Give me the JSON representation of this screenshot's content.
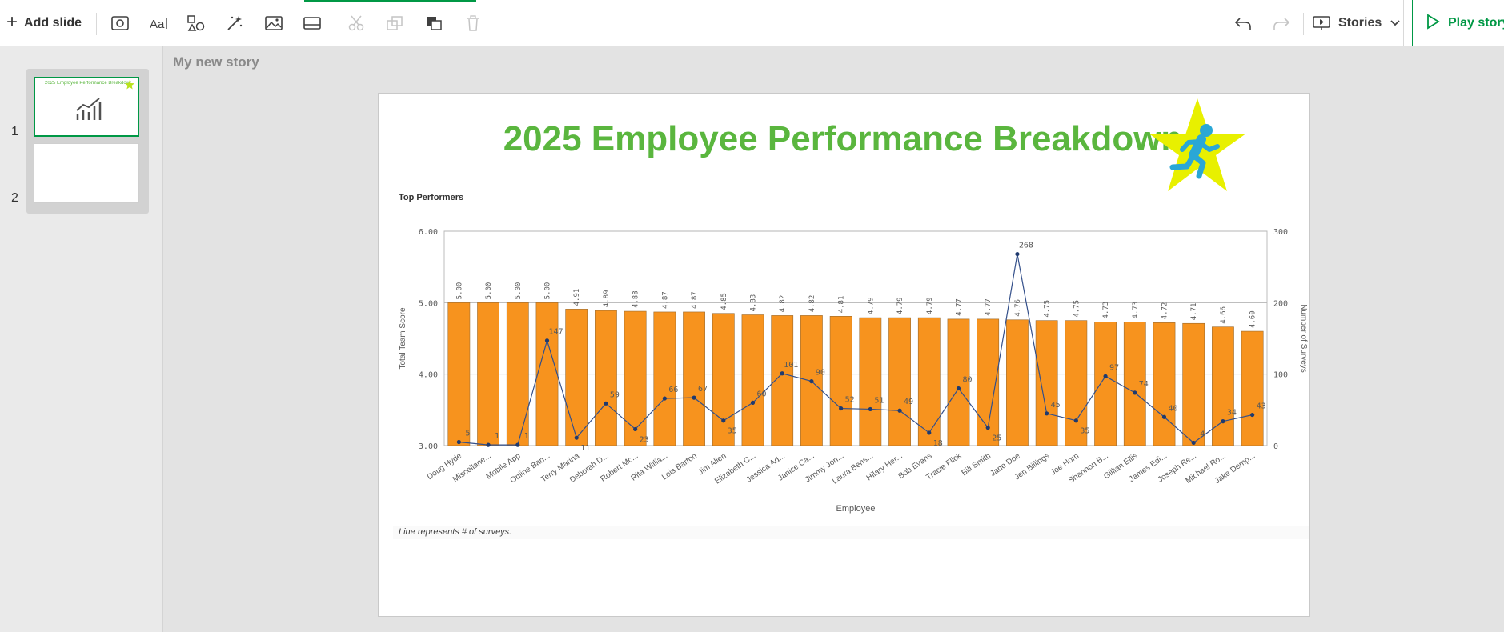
{
  "toolbar": {
    "add_slide_label": "Add slide",
    "stories_label": "Stories",
    "play_story_label": "Play story",
    "icons": [
      "snapshot-icon",
      "text-icon",
      "shapes-icon",
      "effects-icon",
      "image-icon",
      "sheet-icon",
      "cut-icon",
      "copy-icon",
      "bring-forward-icon",
      "delete-icon",
      "undo-icon",
      "redo-icon",
      "stories-icon",
      "chevron-down-icon",
      "play-icon"
    ]
  },
  "left_panel": {
    "slide_numbers": [
      "1",
      "2"
    ],
    "thumb_title": "2025 Employee Performance Breakdown"
  },
  "story": {
    "title": "My new story"
  },
  "slide": {
    "title": "2025 Employee Performance Breakdown",
    "chart_label": "Top Performers",
    "footnote": "Line represents # of surveys."
  },
  "colors": {
    "accent_green": "#009845",
    "title_green": "#5ab63e",
    "bar_orange": "#f7931e",
    "line_blue": "#334f8a",
    "star_yellow": "#e8f000",
    "runner_blue": "#2aa7d6"
  },
  "chart_data": {
    "type": "bar",
    "title": "",
    "xlabel": "Employee",
    "ylabel": "Total Team Score",
    "y2label": "Number of Surveys",
    "ylim": [
      3,
      6
    ],
    "y2lim": [
      0,
      300
    ],
    "yticks": [
      "3.00",
      "4.00",
      "5.00",
      "6.00"
    ],
    "y2ticks": [
      "0",
      "100",
      "200",
      "300"
    ],
    "categories": [
      "Doug Hyde",
      "Miscellane...",
      "Mobile App",
      "Online Ban...",
      "Terry Marina",
      "Deborah D...",
      "Robert Mc...",
      "Rita Willia...",
      "Lois Barton",
      "Jim Allen",
      "Elizabeth C...",
      "Jessica Ad...",
      "Janice Ca...",
      "Jimmy Jon...",
      "Laura Bens...",
      "Hilary Her...",
      "Bob Evans",
      "Tracie Flick",
      "Bill Smith",
      "Jane Doe",
      "Jen Billings",
      "Joe Horn",
      "Shannon B...",
      "Gillian Ellis",
      "James Edi...",
      "Joseph Re...",
      "Michael Ro...",
      "Jake Demp..."
    ],
    "series": [
      {
        "name": "Total Team Score",
        "type": "bar",
        "axis": "left",
        "values": [
          5.0,
          5.0,
          5.0,
          5.0,
          4.91,
          4.89,
          4.88,
          4.87,
          4.87,
          4.85,
          4.83,
          4.82,
          4.82,
          4.81,
          4.79,
          4.79,
          4.79,
          4.77,
          4.77,
          4.76,
          4.75,
          4.75,
          4.73,
          4.73,
          4.72,
          4.71,
          4.66,
          4.6
        ],
        "labels": [
          "5.00",
          "5.00",
          "5.00",
          "5.00",
          "4.91",
          "4.89",
          "4.88",
          "4.87",
          "4.87",
          "4.85",
          "4.83",
          "4.82",
          "4.82",
          "4.81",
          "4.79",
          "4.79",
          "4.79",
          "4.77",
          "4.77",
          "4.76",
          "4.75",
          "4.75",
          "4.73",
          "4.73",
          "4.72",
          "4.71",
          "4.66",
          "4.60"
        ]
      },
      {
        "name": "Number of Surveys",
        "type": "line",
        "axis": "right",
        "values": [
          5,
          1,
          1,
          147,
          11,
          59,
          23,
          66,
          67,
          35,
          60,
          101,
          90,
          52,
          51,
          49,
          18,
          80,
          25,
          268,
          45,
          35,
          97,
          74,
          40,
          4,
          34,
          43
        ]
      }
    ],
    "grid": true,
    "legend": "none"
  }
}
